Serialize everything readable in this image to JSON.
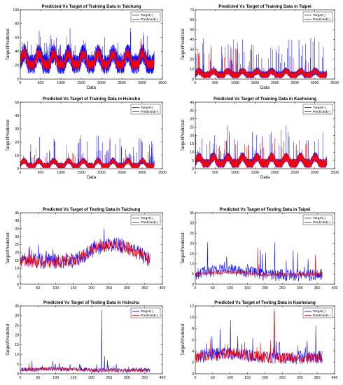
{
  "figure": {
    "colors": {
      "target": "#0000ff",
      "predicted": "#ff0000"
    }
  },
  "chart_data": [
    {
      "type": "line",
      "title": "Predicted Vs Target of Training Data in Taichung",
      "xlabel": "Data",
      "ylabel": "Target/Predicted",
      "xlim": [
        0,
        3500
      ],
      "ylim": [
        0,
        100
      ],
      "xticks": [
        0,
        500,
        1000,
        1500,
        2000,
        2500,
        3000,
        3500
      ],
      "yticks": [
        0,
        20,
        40,
        60,
        80,
        100
      ],
      "legend": {
        "placement": "top-right",
        "entries": [
          "Target(-)",
          "Predicted(-)"
        ]
      },
      "series": [
        {
          "name": "Target(-)",
          "color": "#0000ff",
          "n": 3300,
          "base": 25,
          "seasonal_amp": 12,
          "season_period": 365,
          "spread": 14,
          "spike_prob": 0.03,
          "spike_scale": 30,
          "min": 5,
          "max": 85,
          "seed": 11
        },
        {
          "name": "Predicted(-)",
          "color": "#ff0000",
          "n": 3300,
          "base": 25,
          "seasonal_amp": 12,
          "season_period": 365,
          "spread": 7,
          "spike_prob": 0.015,
          "spike_scale": 15,
          "min": 8,
          "max": 70,
          "seed": 12
        }
      ]
    },
    {
      "type": "line",
      "title": "Predicted Vs Target of Training Data in Taipei",
      "xlabel": "Data",
      "ylabel": "Target/Predicted",
      "xlim": [
        0,
        3500
      ],
      "ylim": [
        0,
        70
      ],
      "xticks": [
        0,
        500,
        1000,
        1500,
        2000,
        2500,
        3000,
        3500
      ],
      "yticks": [
        0,
        10,
        20,
        30,
        40,
        50,
        60,
        70
      ],
      "legend": {
        "placement": "top-right",
        "entries": [
          "Target(-)",
          "Predicted(-)"
        ]
      },
      "series": [
        {
          "name": "Target(-)",
          "color": "#0000ff",
          "n": 3300,
          "base": 5,
          "seasonal_amp": 3,
          "season_period": 365,
          "spread": 4,
          "spike_prob": 0.02,
          "spike_scale": 35,
          "min": 1,
          "max": 68,
          "seed": 21
        },
        {
          "name": "Predicted(-)",
          "color": "#ff0000",
          "n": 3300,
          "base": 5,
          "seasonal_amp": 3,
          "season_period": 365,
          "spread": 3,
          "spike_prob": 0.008,
          "spike_scale": 30,
          "min": 1,
          "max": 58,
          "seed": 22
        }
      ]
    },
    {
      "type": "line",
      "title": "Predicted Vs Target of Training Data in Hsinchu",
      "xlabel": "Data",
      "ylabel": "Target/Predicted",
      "xlim": [
        0,
        3500
      ],
      "ylim": [
        0,
        50
      ],
      "xticks": [
        0,
        500,
        1000,
        1500,
        2000,
        2500,
        3000,
        3500
      ],
      "yticks": [
        0,
        10,
        20,
        30,
        40,
        50
      ],
      "legend": {
        "placement": "top-right",
        "entries": [
          "Target(-)",
          "Predicted(-)"
        ]
      },
      "series": [
        {
          "name": "Target(-)",
          "color": "#0000ff",
          "n": 3300,
          "base": 3,
          "seasonal_amp": 3,
          "season_period": 365,
          "spread": 2.5,
          "spike_prob": 0.02,
          "spike_scale": 20,
          "min": 0.5,
          "max": 45,
          "seed": 31
        },
        {
          "name": "Predicted(-)",
          "color": "#ff0000",
          "n": 3300,
          "base": 3,
          "seasonal_amp": 3,
          "season_period": 365,
          "spread": 2,
          "spike_prob": 0.008,
          "spike_scale": 12,
          "min": 0.5,
          "max": 30,
          "seed": 32
        }
      ]
    },
    {
      "type": "line",
      "title": "Predicted Vs Target of Training Data in Kaohsiung",
      "xlabel": "Data",
      "ylabel": "Target/Predicted",
      "xlim": [
        0,
        3500
      ],
      "ylim": [
        0,
        40
      ],
      "xticks": [
        0,
        500,
        1000,
        1500,
        2000,
        2500,
        3000,
        3500
      ],
      "yticks": [
        0,
        5,
        10,
        15,
        20,
        25,
        30,
        35,
        40
      ],
      "legend": {
        "placement": "top-right",
        "entries": [
          "Target(-)",
          "Predicted(-)"
        ]
      },
      "series": [
        {
          "name": "Target(-)",
          "color": "#0000ff",
          "n": 3300,
          "base": 4,
          "seasonal_amp": 3,
          "season_period": 365,
          "spread": 3,
          "spike_prob": 0.02,
          "spike_scale": 18,
          "min": 0.5,
          "max": 37,
          "seed": 41
        },
        {
          "name": "Predicted(-)",
          "color": "#ff0000",
          "n": 3300,
          "base": 4,
          "seasonal_amp": 3,
          "season_period": 365,
          "spread": 2.5,
          "spike_prob": 0.01,
          "spike_scale": 12,
          "min": 0.5,
          "max": 24,
          "seed": 42
        }
      ]
    },
    {
      "type": "line",
      "title": "Predicted Vs Target of Testing Data in Taichung",
      "xlabel": "",
      "ylabel": "Target/Predicted",
      "xlim": [
        0,
        400
      ],
      "ylim": [
        0,
        45
      ],
      "xticks": [
        0,
        50,
        100,
        150,
        200,
        250,
        300,
        350,
        400
      ],
      "yticks": [
        0,
        5,
        10,
        15,
        20,
        25,
        30,
        35,
        40,
        45
      ],
      "legend": {
        "placement": "top-right",
        "entries": [
          "Target(-)",
          "Predicted(-)"
        ]
      },
      "series": [
        {
          "name": "Target(-)",
          "color": "#0000ff",
          "n": 365,
          "base": 17,
          "seasonal_amp": 8,
          "season_period": 365,
          "season_phase": 3.4,
          "spread": 5,
          "spike_prob": 0.03,
          "spike_scale": 10,
          "min": 5,
          "max": 42,
          "seed": 51
        },
        {
          "name": "Predicted(-)",
          "color": "#ff0000",
          "n": 365,
          "base": 17,
          "seasonal_amp": 8,
          "season_period": 365,
          "season_phase": 3.4,
          "spread": 4,
          "spike_prob": 0.02,
          "spike_scale": 8,
          "min": 6,
          "max": 40,
          "seed": 52
        }
      ]
    },
    {
      "type": "line",
      "title": "Predicted Vs Target of Testing Data in Taipei",
      "xlabel": "",
      "ylabel": "Target/Predicted",
      "xlim": [
        0,
        400
      ],
      "ylim": [
        0,
        35
      ],
      "xticks": [
        0,
        50,
        100,
        150,
        200,
        250,
        300,
        350,
        400
      ],
      "yticks": [
        0,
        5,
        10,
        15,
        20,
        25,
        30,
        35
      ],
      "legend": {
        "placement": "top-right",
        "entries": [
          "Target(-)",
          "Predicted(-)"
        ]
      },
      "series": [
        {
          "name": "Target(-)",
          "color": "#0000ff",
          "n": 365,
          "base": 5,
          "seasonal_amp": 2,
          "season_period": 365,
          "spread": 3,
          "spike_prob": 0.06,
          "spike_scale": 16,
          "min": 0.5,
          "max": 30,
          "seed": 61
        },
        {
          "name": "Predicted(-)",
          "color": "#ff0000",
          "n": 365,
          "base": 5,
          "seasonal_amp": 1,
          "season_period": 365,
          "spread": 1,
          "spike_prob": 0.01,
          "spike_scale": 14,
          "min": 2,
          "max": 24,
          "seed": 62
        }
      ]
    },
    {
      "type": "line",
      "title": "Predicted Vs Target of Testing Data in Hsinchu",
      "xlabel": "",
      "ylabel": "Target/Predicted",
      "xlim": [
        0,
        400
      ],
      "ylim": [
        0,
        35
      ],
      "xticks": [
        0,
        50,
        100,
        150,
        200,
        250,
        300,
        350,
        400
      ],
      "yticks": [
        0,
        5,
        10,
        15,
        20,
        25,
        30,
        35
      ],
      "legend": {
        "placement": "top-right",
        "entries": [
          "Target(-)",
          "Predicted(-)"
        ]
      },
      "series": [
        {
          "name": "Target(-)",
          "color": "#0000ff",
          "n": 365,
          "base": 2,
          "seasonal_amp": 0.5,
          "season_period": 365,
          "spread": 1.2,
          "spike_prob": 0.03,
          "spike_scale": 5,
          "min": 0.5,
          "max": 33,
          "seed": 71,
          "spike_at": [
            [
              228,
              33
            ],
            [
              236,
              9
            ],
            [
              244,
              7
            ]
          ]
        },
        {
          "name": "Predicted(-)",
          "color": "#ff0000",
          "n": 365,
          "base": 2,
          "seasonal_amp": 0.5,
          "season_period": 365,
          "spread": 0.8,
          "spike_prob": 0.02,
          "spike_scale": 3,
          "min": 0.5,
          "max": 8,
          "seed": 72
        }
      ]
    },
    {
      "type": "line",
      "title": "Predicted Vs Target of Testing Data in Kaohsiung",
      "xlabel": "",
      "ylabel": "Target/Predicted",
      "xlim": [
        0,
        400
      ],
      "ylim": [
        0,
        12
      ],
      "xticks": [
        0,
        50,
        100,
        150,
        200,
        250,
        300,
        350,
        400
      ],
      "yticks": [
        0,
        2,
        4,
        6,
        8,
        10,
        12
      ],
      "legend": {
        "placement": "top-right",
        "entries": [
          "Target(-)",
          "Predicted(-)"
        ]
      },
      "series": [
        {
          "name": "Target(-)",
          "color": "#0000ff",
          "n": 365,
          "base": 3,
          "seasonal_amp": 0.5,
          "season_period": 365,
          "spread": 1.2,
          "spike_prob": 0.04,
          "spike_scale": 4,
          "min": 0.5,
          "max": 11.5,
          "seed": 81,
          "spike_at": [
            [
              225,
              11
            ],
            [
              100,
              9.5
            ],
            [
              345,
              8.5
            ]
          ]
        },
        {
          "name": "Predicted(-)",
          "color": "#ff0000",
          "n": 365,
          "base": 3,
          "seasonal_amp": 0.5,
          "season_period": 365,
          "spread": 1,
          "spike_prob": 0.03,
          "spike_scale": 3,
          "min": 0.5,
          "max": 11.5,
          "seed": 82,
          "spike_at": [
            [
              226,
              11.5
            ]
          ]
        }
      ]
    }
  ]
}
